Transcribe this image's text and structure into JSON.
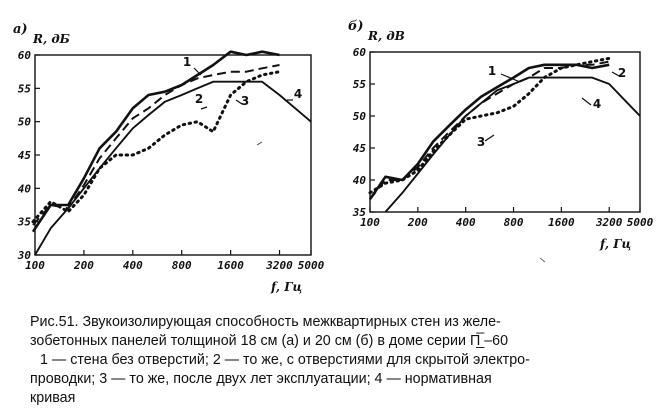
{
  "chart_data": [
    {
      "panel": "а)",
      "type": "line",
      "ylabel": "R, дБ",
      "xlabel": "f, Гц",
      "xscale": "log",
      "xlim": [
        100,
        5000
      ],
      "ylim": [
        30,
        60
      ],
      "x_ticks": [
        "100",
        "200",
        "400",
        "800",
        "1600",
        "3200",
        "5000"
      ],
      "y_ticks": [
        "30",
        "35",
        "40",
        "45",
        "50",
        "55",
        "60"
      ],
      "series": [
        {
          "name": "1",
          "style": "solid",
          "x": [
            90,
            125,
            160,
            200,
            250,
            315,
            400,
            500,
            630,
            800,
            1000,
            1250,
            1600,
            2000,
            2500,
            3200
          ],
          "y": [
            33.5,
            37.5,
            37.5,
            41.5,
            46,
            48.5,
            52,
            54,
            54.5,
            55.5,
            57,
            58.5,
            60.5,
            60,
            60.5,
            60
          ]
        },
        {
          "name": "2",
          "style": "dashed",
          "x": [
            90,
            125,
            160,
            200,
            250,
            315,
            400,
            500,
            630,
            800,
            1000,
            1250,
            1600,
            2000,
            2500,
            3200
          ],
          "y": [
            34.5,
            37.5,
            37,
            40.5,
            44.5,
            47.5,
            50.5,
            52,
            54,
            55.5,
            56.5,
            57,
            57.5,
            57.5,
            58,
            58.5
          ]
        },
        {
          "name": "3",
          "style": "dotted",
          "x": [
            90,
            125,
            160,
            200,
            250,
            315,
            400,
            500,
            630,
            800,
            1000,
            1250,
            1600,
            2000,
            2500,
            3200
          ],
          "y": [
            35,
            38,
            36.5,
            39,
            43,
            45,
            45,
            46,
            48,
            49.5,
            50,
            48.5,
            54,
            56,
            57,
            57.5
          ]
        },
        {
          "name": "4",
          "style": "solid-thin",
          "x": [
            100,
            125,
            160,
            200,
            250,
            315,
            400,
            500,
            630,
            800,
            1000,
            1250,
            1600,
            2000,
            2500,
            3200,
            5000
          ],
          "y": [
            30,
            34,
            37,
            40,
            43,
            46,
            49,
            51,
            53,
            54,
            55,
            56,
            56,
            56,
            56,
            54,
            50
          ]
        }
      ],
      "curve_labels": [
        "1",
        "2",
        "3",
        "4"
      ]
    },
    {
      "panel": "б)",
      "type": "line",
      "ylabel": "R, дВ",
      "xlabel": "f, Гц",
      "xscale": "log",
      "xlim": [
        100,
        5000
      ],
      "ylim": [
        35,
        60
      ],
      "x_ticks": [
        "100",
        "200",
        "400",
        "800",
        "1600",
        "3200",
        "5000"
      ],
      "y_ticks": [
        "35",
        "40",
        "45",
        "50",
        "55",
        "60"
      ],
      "series": [
        {
          "name": "1",
          "style": "solid",
          "x": [
            100,
            125,
            160,
            200,
            250,
            315,
            400,
            500,
            630,
            800,
            1000,
            1250,
            1600,
            2000,
            2500,
            3200
          ],
          "y": [
            37,
            40.5,
            40,
            42.5,
            46,
            48.5,
            51,
            53,
            54.5,
            56,
            57.5,
            58,
            58,
            58,
            57.5,
            58
          ]
        },
        {
          "name": "2",
          "style": "dashed",
          "x": [
            100,
            125,
            160,
            200,
            250,
            315,
            400,
            500,
            630,
            800,
            1000,
            1250,
            1600,
            2000,
            2500,
            3200
          ],
          "y": [
            37,
            40,
            40,
            42,
            45,
            47.5,
            50,
            52,
            53.5,
            55,
            56,
            57.5,
            57.5,
            58,
            58,
            58.5
          ]
        },
        {
          "name": "3",
          "style": "dotted",
          "x": [
            100,
            125,
            160,
            200,
            250,
            315,
            400,
            500,
            630,
            800,
            1000,
            1250,
            1600,
            2000,
            2500,
            3200
          ],
          "y": [
            38,
            39.5,
            40,
            41.5,
            44.5,
            47,
            49.5,
            50,
            50.5,
            51.5,
            53.5,
            56,
            57.5,
            58,
            58.5,
            59
          ]
        },
        {
          "name": "4",
          "style": "solid-thin",
          "x": [
            125,
            160,
            200,
            250,
            315,
            400,
            500,
            630,
            800,
            1000,
            1250,
            1600,
            2000,
            2500,
            3200,
            5000
          ],
          "y": [
            35,
            38,
            41,
            44,
            47,
            50,
            52,
            54,
            55,
            56,
            56,
            56,
            56,
            56,
            55,
            50
          ]
        }
      ],
      "curve_labels": [
        "1",
        "2",
        "3",
        "4"
      ]
    }
  ],
  "caption": {
    "line1": "Рис.51. Звукоизолирующая способность межквартирных стен из желе-",
    "line2": "зобетонных панелей толщиной 18 см  (а)  и 20 см  (б)  в доме серии  П̲̅ –60",
    "line3": "1 — стена без отверстий;  2 — то же, с отверстиями для скрытой электро-",
    "line4": "проводки;  3 — то же, после двух лет эксплуатации;  4 — нормативная",
    "line5": "кривая"
  }
}
